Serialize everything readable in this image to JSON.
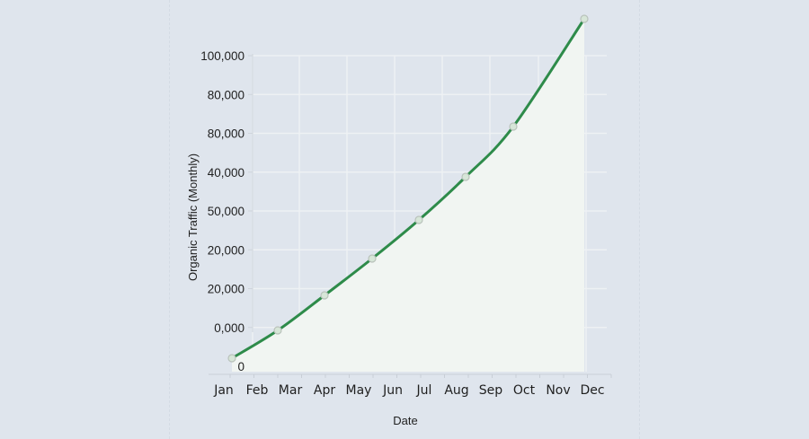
{
  "chart_data": {
    "type": "area",
    "title": "",
    "xlabel": "Date",
    "ylabel": "Organic Traffic (Monthly)",
    "categories": [
      "Jan",
      "Feb",
      "Mar",
      "Apr",
      "May",
      "Jun",
      "Jul",
      "Aug",
      "Sep",
      "Oct",
      "Nov",
      "Dec"
    ],
    "y_tick_labels": [
      "0",
      "0,000",
      "20,000",
      "20,000",
      "50,000",
      "40,000",
      "80,000",
      "80,000",
      "100,000"
    ],
    "y_tick_positions": [
      0,
      10000,
      20000,
      30000,
      40000,
      50000,
      60000,
      70000,
      80000
    ],
    "ylim": [
      0,
      80000
    ],
    "grid": true,
    "legend": null,
    "series": [
      {
        "name": "Organic Traffic (Monthly)",
        "color": "#2e8b4a",
        "fill": "#f1f5f2",
        "points": [
          {
            "x": "Jan",
            "y": 2000
          },
          {
            "x": "Feb",
            "y": 9000
          },
          {
            "x": "Apr",
            "y": 18000
          },
          {
            "x": "May",
            "y": 27400
          },
          {
            "x": "Jul",
            "y": 37200
          },
          {
            "x": "Aug",
            "y": 48200
          },
          {
            "x": "Oct",
            "y": 61000
          },
          {
            "x": "Dec",
            "y": 88500
          }
        ]
      }
    ]
  },
  "colors": {
    "background": "#dfe5ed",
    "line": "#2e8b4a",
    "area_fill": "#f1f5f2",
    "grid": "#eef1f4",
    "marker_stroke": "#b9c2bb",
    "marker_fill": "#d7e6d8"
  }
}
